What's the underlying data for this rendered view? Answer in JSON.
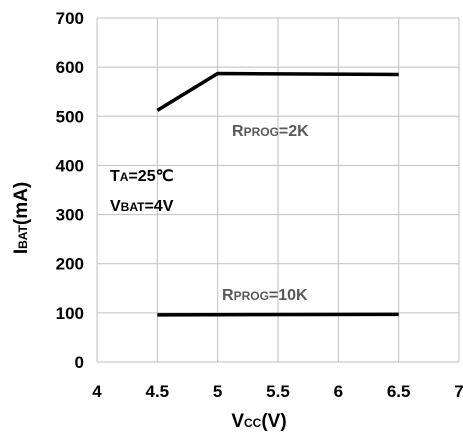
{
  "chart_data": {
    "type": "line",
    "title": "",
    "xlabel": {
      "main": "V",
      "sub": "CC",
      "suffix": "(V)"
    },
    "ylabel": {
      "main": "I",
      "sub": "BAT",
      "suffix": "(mA)"
    },
    "xlim": [
      4,
      7
    ],
    "ylim": [
      0,
      700
    ],
    "xticks": [
      "4",
      "4.5",
      "5",
      "5.5",
      "6",
      "6.5",
      "7"
    ],
    "yticks": [
      "0",
      "100",
      "200",
      "300",
      "400",
      "500",
      "600",
      "700"
    ],
    "grid": true,
    "series": [
      {
        "label": {
          "main": "R",
          "sub": "PROG",
          "suffix": "=2K"
        },
        "x": [
          4.5,
          5.0,
          6.5
        ],
        "y": [
          512,
          587,
          585
        ]
      },
      {
        "label": {
          "main": "R",
          "sub": "PROG",
          "suffix": "=10K"
        },
        "x": [
          4.5,
          6.5
        ],
        "y": [
          96,
          97
        ]
      }
    ],
    "annotations": [
      {
        "main": "T",
        "sub": "A",
        "suffix": "=25℃"
      },
      {
        "main": "V",
        "sub": "BAT",
        "suffix": "=4V"
      }
    ],
    "colors": {
      "line": "#000000",
      "grid": "#bfbfbf",
      "series_label": "#595959"
    }
  }
}
